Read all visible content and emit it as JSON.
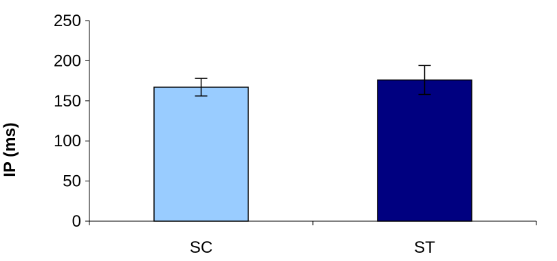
{
  "chart_data": {
    "type": "bar",
    "title": "",
    "xlabel": "",
    "ylabel": "IP (ms)",
    "categories": [
      "SC",
      "ST"
    ],
    "values": [
      167,
      176
    ],
    "errors": [
      11,
      18
    ],
    "ylim": [
      0,
      250
    ],
    "yticks": [
      0,
      50,
      100,
      150,
      200,
      250
    ],
    "grid": false,
    "legend": "none",
    "colors": {
      "bars": [
        "#99CCFF",
        "#000080"
      ],
      "outline": "#000000",
      "axis": "#000000"
    }
  }
}
